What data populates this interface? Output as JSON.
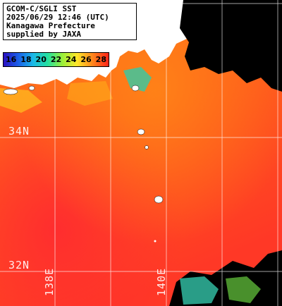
{
  "title_lines": [
    "GCOM-C/SGLI SST",
    "2025/06/29 12:46 (UTC)",
    "Kanagawa Prefecture",
    "supplied by JAXA"
  ],
  "legend": {
    "ticks": [
      "16",
      "18",
      "20",
      "22",
      "24",
      "26",
      "28"
    ]
  },
  "grid_labels": {
    "lat_34": "34N",
    "lat_32": "32N",
    "lon_138": "138E",
    "lon_140": "140E"
  },
  "colors": {
    "warm_sea": "#ff6a1a",
    "hot_sea": "#ff3a20",
    "land": "#ffffff",
    "cloud_mask": "#000000",
    "grid": "#ffffff"
  }
}
